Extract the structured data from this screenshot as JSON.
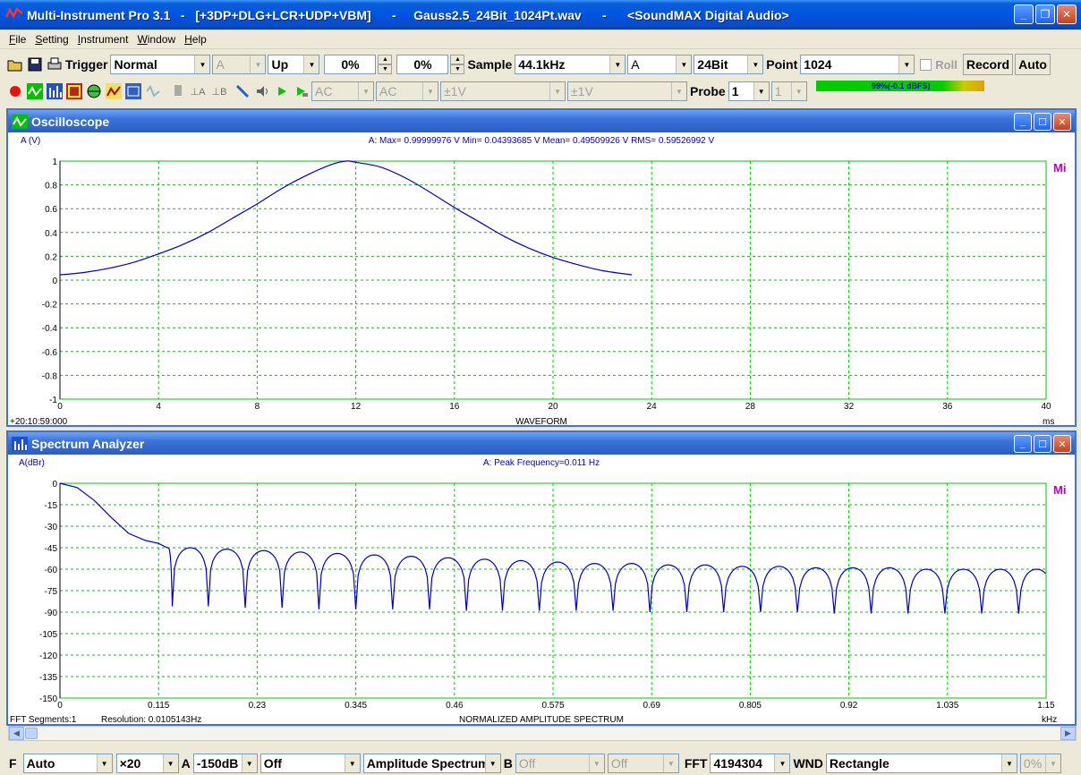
{
  "window": {
    "title": "Multi-Instrument Pro 3.1   -   [+3DP+DLG+LCR+UDP+VBM]      -     Gauss2.5_24Bit_1024Pt.wav      -      <SoundMAX Digital Audio>",
    "minimize": "_",
    "maximize": "❐",
    "close": "✕"
  },
  "menu": [
    "File",
    "Setting",
    "Instrument",
    "Window",
    "Help"
  ],
  "toolbar1": {
    "trigger_label": "Trigger",
    "trigger_mode": "Normal",
    "trigger_channel": "A",
    "trigger_edge": "Up",
    "trigger_level": "0%",
    "trigger_delay": "0%",
    "sample_label": "Sample",
    "sample_rate": "44.1kHz",
    "channel": "A",
    "bit_depth": "24Bit",
    "point_label": "Point",
    "points": "1024",
    "roll_label": "Roll",
    "record_label": "Record",
    "auto_label": "Auto"
  },
  "toolbar2": {
    "coupling_a": "AC",
    "coupling_b": "AC",
    "range_a": "±1V",
    "range_b": "±1V",
    "probe_label": "Probe",
    "probe_a": "1",
    "probe_b": "1",
    "level_text": "99%(-0.1 dBFS)",
    "level_fraction": 0.99
  },
  "oscilloscope": {
    "title": "Oscilloscope",
    "ylabel": "A (V)",
    "stats": "A: Max= 0.99999976 V  Min= 0.04393685 V  Mean= 0.49509926 V  RMS= 0.59526992 V",
    "xlabel": "WAVEFORM",
    "x_unit": "ms",
    "time_stamp": "+20:10:59:000",
    "watermark": "Mi"
  },
  "spectrum": {
    "title": "Spectrum Analyzer",
    "ylabel": "A(dBr)",
    "stats": "A: Peak Frequency=0.011 Hz",
    "xlabel": "NORMALIZED AMPLITUDE SPECTRUM",
    "x_unit": "kHz",
    "segments": "FFT Segments:1",
    "resolution": "Resolution: 0.0105143Hz",
    "watermark": "Mi"
  },
  "bottom": {
    "f_label": "F",
    "freq_scale": "Auto",
    "zoom": "×20",
    "a_label": "A",
    "a_floor": "-150dB",
    "a_weight": "Off",
    "analysis_mode": "Amplitude Spectrum",
    "b_label": "B",
    "b_floor": "Off",
    "b_weight": "Off",
    "fft_label": "FFT",
    "fft_size": "4194304",
    "wnd_label": "WND",
    "window_func": "Rectangle",
    "overlap": "0%"
  },
  "chart_data": [
    {
      "type": "line",
      "title": "",
      "xlabel": "WAVEFORM",
      "ylabel": "A (V)",
      "x_ticks": [
        "0",
        "4",
        "8",
        "12",
        "16",
        "20",
        "24",
        "28",
        "32",
        "36",
        "40"
      ],
      "y_ticks": [
        "1",
        "0.8",
        "0.6",
        "0.4",
        "0.2",
        "0",
        "-0.2",
        "-0.4",
        "-0.6",
        "-0.8",
        "-1"
      ],
      "xlim": [
        0,
        40
      ],
      "ylim": [
        -1,
        1
      ],
      "grid": true,
      "series": [
        {
          "x": [
            0,
            1,
            2,
            3,
            4,
            5,
            6,
            7,
            8,
            9,
            10,
            11,
            11.6,
            12,
            13,
            14,
            15,
            16,
            17,
            18,
            19,
            20,
            21,
            22,
            23.2
          ],
          "y": [
            0.044,
            0.065,
            0.1,
            0.15,
            0.22,
            0.3,
            0.4,
            0.52,
            0.64,
            0.77,
            0.88,
            0.97,
            1.0,
            0.99,
            0.95,
            0.86,
            0.74,
            0.61,
            0.49,
            0.37,
            0.27,
            0.19,
            0.13,
            0.08,
            0.044
          ]
        }
      ]
    },
    {
      "type": "line",
      "title": "",
      "xlabel": "NORMALIZED AMPLITUDE SPECTRUM",
      "ylabel": "A(dBr)",
      "x_ticks": [
        "0",
        "0.115",
        "0.23",
        "0.345",
        "0.46",
        "0.575",
        "0.69",
        "0.805",
        "0.92",
        "1.035",
        "1.15"
      ],
      "y_ticks": [
        "0",
        "-15",
        "-30",
        "-45",
        "-60",
        "-75",
        "-90",
        "-105",
        "-120",
        "-135",
        "-150"
      ],
      "xlim": [
        0,
        1.15
      ],
      "ylim": [
        -150,
        0
      ],
      "grid": true,
      "main_lobe": {
        "x": [
          0,
          0.02,
          0.04,
          0.06,
          0.08,
          0.1,
          0.115,
          0.125
        ],
        "y": [
          0,
          -3,
          -12,
          -24,
          -35,
          -40,
          -42,
          -45
        ]
      },
      "side_lobes": {
        "null_frequencies": [
          0.131,
          0.173,
          0.216,
          0.259,
          0.302,
          0.345,
          0.388,
          0.431,
          0.474,
          0.516,
          0.559,
          0.602,
          0.645,
          0.688,
          0.731,
          0.774,
          0.817,
          0.86,
          0.903,
          0.946,
          0.989,
          1.032,
          1.075,
          1.118
        ],
        "peak_level": [
          -45,
          -45,
          -46,
          -47,
          -48,
          -49,
          -50,
          -51,
          -52,
          -53,
          -54,
          -55,
          -56,
          -56,
          -57,
          -57,
          -58,
          -58,
          -59,
          -59,
          -59,
          -60,
          -60,
          -60
        ],
        "null_depth": [
          -86,
          -86,
          -87,
          -87,
          -88,
          -88,
          -88,
          -88,
          -89,
          -89,
          -89,
          -89,
          -89,
          -90,
          -90,
          -90,
          -90,
          -90,
          -91,
          -91,
          -91,
          -91,
          -91,
          -91
        ]
      }
    }
  ],
  "colors": {
    "trace": "#0000c8",
    "grid": "#00c800",
    "watermark": "#c000c0",
    "label": "#0000c8"
  }
}
